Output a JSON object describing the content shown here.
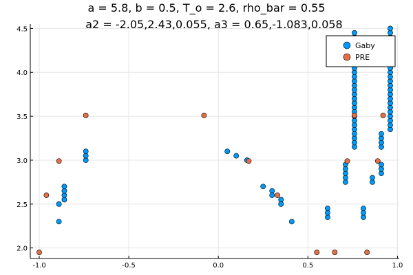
{
  "chart_data": {
    "type": "scatter",
    "title": [
      "a = 5.8, b = 0.5, T_o = 2.6, rho_bar = 0.55",
      "a2 = -2.05,2.43,0.055, a3 = 0.65,-1.083,0.058"
    ],
    "xlabel": "",
    "ylabel": "",
    "xlim": [
      -1.05,
      1.01
    ],
    "ylim": [
      1.88,
      4.55
    ],
    "xticks": [
      -1.0,
      -0.5,
      0.0,
      0.5,
      1.0
    ],
    "xtick_labels": [
      "-1.0",
      "-0.5",
      "0.0",
      "0.5",
      "1.0"
    ],
    "yticks": [
      2.0,
      2.5,
      3.0,
      3.5,
      4.0,
      4.5
    ],
    "ytick_labels": [
      "2.0",
      "2.5",
      "3.0",
      "3.5",
      "4.0",
      "4.5"
    ],
    "grid": true,
    "legend": {
      "position": "top-right"
    },
    "series": [
      {
        "name": "Gaby",
        "color": "#009af9",
        "points": [
          [
            -0.89,
            2.3
          ],
          [
            -0.89,
            2.5
          ],
          [
            -0.86,
            2.55
          ],
          [
            -0.86,
            2.6
          ],
          [
            -0.86,
            2.65
          ],
          [
            -0.86,
            2.7
          ],
          [
            -0.74,
            3.0
          ],
          [
            -0.74,
            3.05
          ],
          [
            -0.74,
            3.1
          ],
          [
            0.05,
            3.1
          ],
          [
            0.1,
            3.05
          ],
          [
            0.16,
            3.0
          ],
          [
            0.25,
            2.7
          ],
          [
            0.3,
            2.65
          ],
          [
            0.3,
            2.6
          ],
          [
            0.35,
            2.55
          ],
          [
            0.35,
            2.5
          ],
          [
            0.41,
            2.3
          ],
          [
            0.61,
            2.35
          ],
          [
            0.61,
            2.4
          ],
          [
            0.61,
            2.45
          ],
          [
            0.71,
            2.75
          ],
          [
            0.71,
            2.8
          ],
          [
            0.71,
            2.85
          ],
          [
            0.71,
            2.9
          ],
          [
            0.71,
            2.95
          ],
          [
            0.76,
            3.15
          ],
          [
            0.76,
            3.2
          ],
          [
            0.76,
            3.25
          ],
          [
            0.76,
            3.3
          ],
          [
            0.76,
            3.35
          ],
          [
            0.76,
            3.4
          ],
          [
            0.76,
            3.45
          ],
          [
            0.76,
            3.5
          ],
          [
            0.76,
            3.55
          ],
          [
            0.76,
            3.6
          ],
          [
            0.76,
            3.65
          ],
          [
            0.76,
            3.7
          ],
          [
            0.76,
            3.75
          ],
          [
            0.76,
            3.8
          ],
          [
            0.76,
            3.85
          ],
          [
            0.76,
            3.9
          ],
          [
            0.76,
            3.95
          ],
          [
            0.76,
            4.0
          ],
          [
            0.76,
            4.05
          ],
          [
            0.76,
            4.1
          ],
          [
            0.76,
            4.15
          ],
          [
            0.76,
            4.2
          ],
          [
            0.76,
            4.25
          ],
          [
            0.76,
            4.3
          ],
          [
            0.76,
            4.35
          ],
          [
            0.76,
            4.4
          ],
          [
            0.76,
            4.45
          ],
          [
            0.81,
            2.35
          ],
          [
            0.81,
            2.4
          ],
          [
            0.81,
            2.45
          ],
          [
            0.86,
            2.75
          ],
          [
            0.86,
            2.8
          ],
          [
            0.91,
            2.85
          ],
          [
            0.91,
            2.9
          ],
          [
            0.91,
            2.95
          ],
          [
            0.91,
            3.15
          ],
          [
            0.91,
            3.2
          ],
          [
            0.91,
            3.25
          ],
          [
            0.91,
            3.3
          ],
          [
            0.96,
            3.35
          ],
          [
            0.96,
            3.4
          ],
          [
            0.96,
            3.45
          ],
          [
            0.96,
            3.5
          ],
          [
            0.96,
            3.55
          ],
          [
            0.96,
            3.6
          ],
          [
            0.96,
            3.65
          ],
          [
            0.96,
            3.7
          ],
          [
            0.96,
            3.75
          ],
          [
            0.96,
            3.8
          ],
          [
            0.96,
            3.85
          ],
          [
            0.96,
            3.9
          ],
          [
            0.96,
            3.95
          ],
          [
            0.96,
            4.0
          ],
          [
            0.96,
            4.05
          ],
          [
            0.96,
            4.1
          ],
          [
            0.96,
            4.15
          ],
          [
            0.96,
            4.2
          ],
          [
            0.96,
            4.25
          ],
          [
            0.96,
            4.3
          ],
          [
            0.96,
            4.35
          ],
          [
            0.96,
            4.4
          ],
          [
            0.96,
            4.45
          ],
          [
            0.96,
            4.5
          ]
        ]
      },
      {
        "name": "PRE",
        "color": "#e26f46",
        "points": [
          [
            -1.0,
            1.95
          ],
          [
            -0.96,
            2.6
          ],
          [
            -0.89,
            2.99
          ],
          [
            -0.74,
            3.51
          ],
          [
            -0.08,
            3.51
          ],
          [
            0.17,
            2.99
          ],
          [
            0.33,
            2.6
          ],
          [
            0.55,
            1.95
          ],
          [
            0.65,
            1.95
          ],
          [
            0.72,
            2.99
          ],
          [
            0.76,
            3.51
          ],
          [
            0.83,
            1.95
          ],
          [
            0.89,
            2.99
          ],
          [
            0.92,
            3.51
          ]
        ]
      }
    ]
  }
}
